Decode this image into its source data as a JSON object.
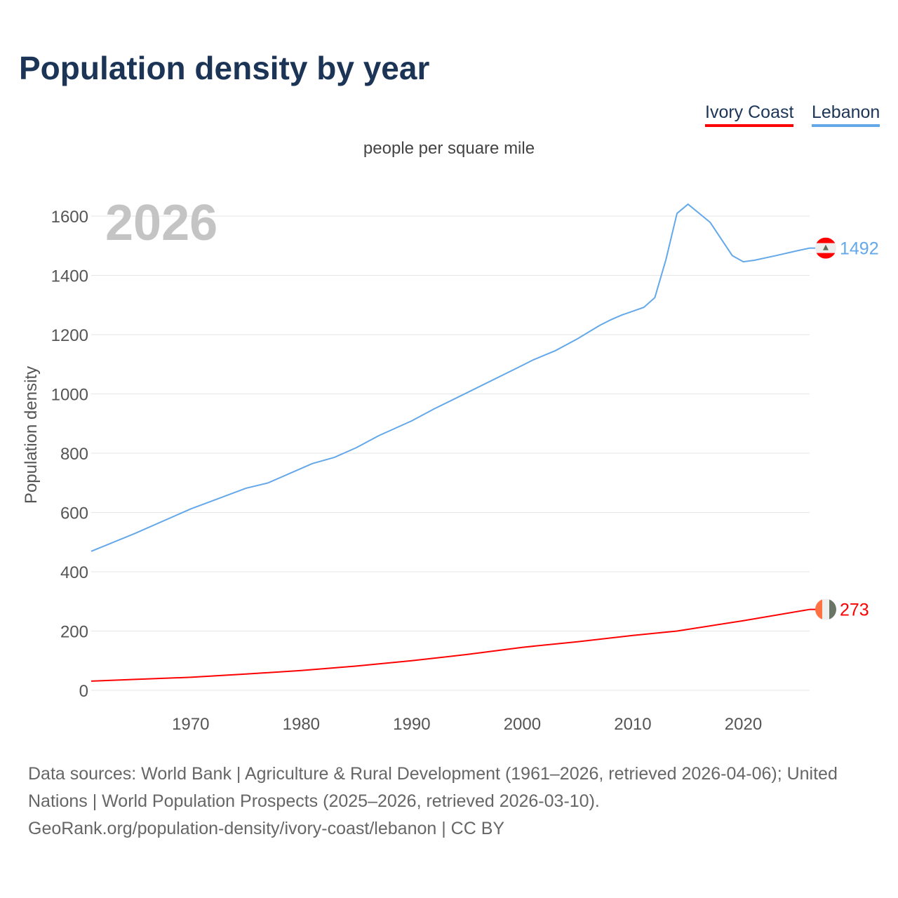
{
  "title": "Population density by year",
  "legend": [
    "Ivory Coast",
    "Lebanon"
  ],
  "footer": {
    "line1": "Data sources: World Bank | Agriculture & Rural Development (1961–2026, retrieved 2026-04-06); United Nations | World Population Prospects (2025–2026, retrieved 2026-03-10).",
    "line2": "GeoRank.org/population-density/ivory-coast/lebanon | CC BY"
  },
  "chart_data": {
    "type": "line",
    "title": "Population density by year",
    "subtitle": "people per square mile",
    "ylabel": "Population density",
    "xlabel": "",
    "year_watermark": "2026",
    "xlim": [
      1961,
      2026
    ],
    "ylim": [
      0,
      1600
    ],
    "xticks": [
      "1970",
      "1980",
      "1990",
      "2000",
      "2010",
      "2020"
    ],
    "yticks": [
      "0",
      "200",
      "400",
      "600",
      "800",
      "1000",
      "1200",
      "1400",
      "1600"
    ],
    "series": [
      {
        "name": "Ivory Coast",
        "color": "#ff0000",
        "end_label": "273",
        "points": [
          [
            1961,
            31
          ],
          [
            1965,
            37
          ],
          [
            1970,
            44
          ],
          [
            1975,
            55
          ],
          [
            1980,
            67
          ],
          [
            1985,
            82
          ],
          [
            1990,
            100
          ],
          [
            1995,
            121
          ],
          [
            2000,
            145
          ],
          [
            2005,
            164
          ],
          [
            2010,
            185
          ],
          [
            2014,
            200
          ],
          [
            2020,
            235
          ],
          [
            2026,
            273
          ]
        ]
      },
      {
        "name": "Lebanon",
        "color": "#64a8ea",
        "end_label": "1492",
        "points": [
          [
            1961,
            469
          ],
          [
            1965,
            530
          ],
          [
            1970,
            612
          ],
          [
            1975,
            682
          ],
          [
            1977,
            700
          ],
          [
            1981,
            765
          ],
          [
            1983,
            786
          ],
          [
            1985,
            819
          ],
          [
            1987,
            859
          ],
          [
            1990,
            909
          ],
          [
            1992,
            949
          ],
          [
            1995,
            1004
          ],
          [
            2000,
            1096
          ],
          [
            2001,
            1115
          ],
          [
            2003,
            1146
          ],
          [
            2005,
            1186
          ],
          [
            2007,
            1231
          ],
          [
            2008,
            1250
          ],
          [
            2009,
            1266
          ],
          [
            2011,
            1292
          ],
          [
            2012,
            1325
          ],
          [
            2013,
            1453
          ],
          [
            2014,
            1609
          ],
          [
            2015,
            1640
          ],
          [
            2017,
            1579
          ],
          [
            2019,
            1467
          ],
          [
            2020,
            1446
          ],
          [
            2021,
            1451
          ],
          [
            2023,
            1467
          ],
          [
            2025,
            1484
          ],
          [
            2026,
            1492
          ]
        ]
      }
    ]
  }
}
